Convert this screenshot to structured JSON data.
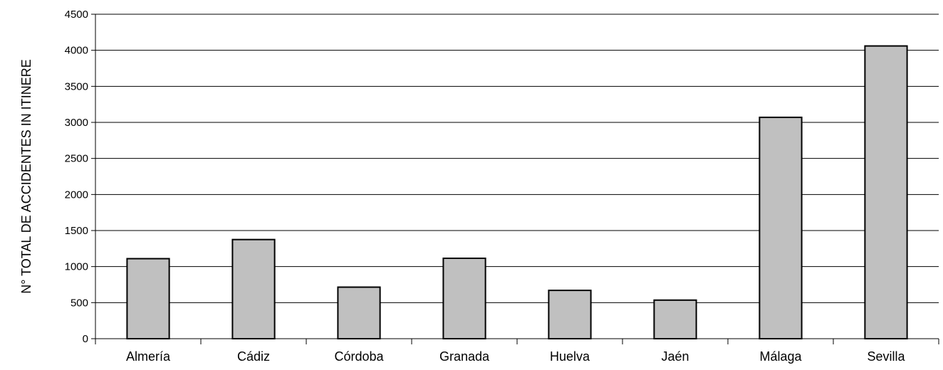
{
  "chart_data": {
    "type": "bar",
    "categories": [
      "Almería",
      "Cádiz",
      "Córdoba",
      "Granada",
      "Huelva",
      "Jaén",
      "Málaga",
      "Sevilla"
    ],
    "values": [
      1110,
      1375,
      715,
      1115,
      670,
      535,
      3070,
      4060
    ],
    "title": "",
    "xlabel": "",
    "ylabel": "N° TOTAL DE ACCIDENTES IN ITINERE",
    "ylim": [
      0,
      4500
    ],
    "yticks": [
      0,
      500,
      1000,
      1500,
      2000,
      2500,
      3000,
      3500,
      4000,
      4500
    ],
    "grid": true,
    "legend": "none",
    "colors": {
      "bar_fill": "#c0c0c0",
      "bar_stroke": "#000000",
      "grid": "#000000"
    }
  }
}
